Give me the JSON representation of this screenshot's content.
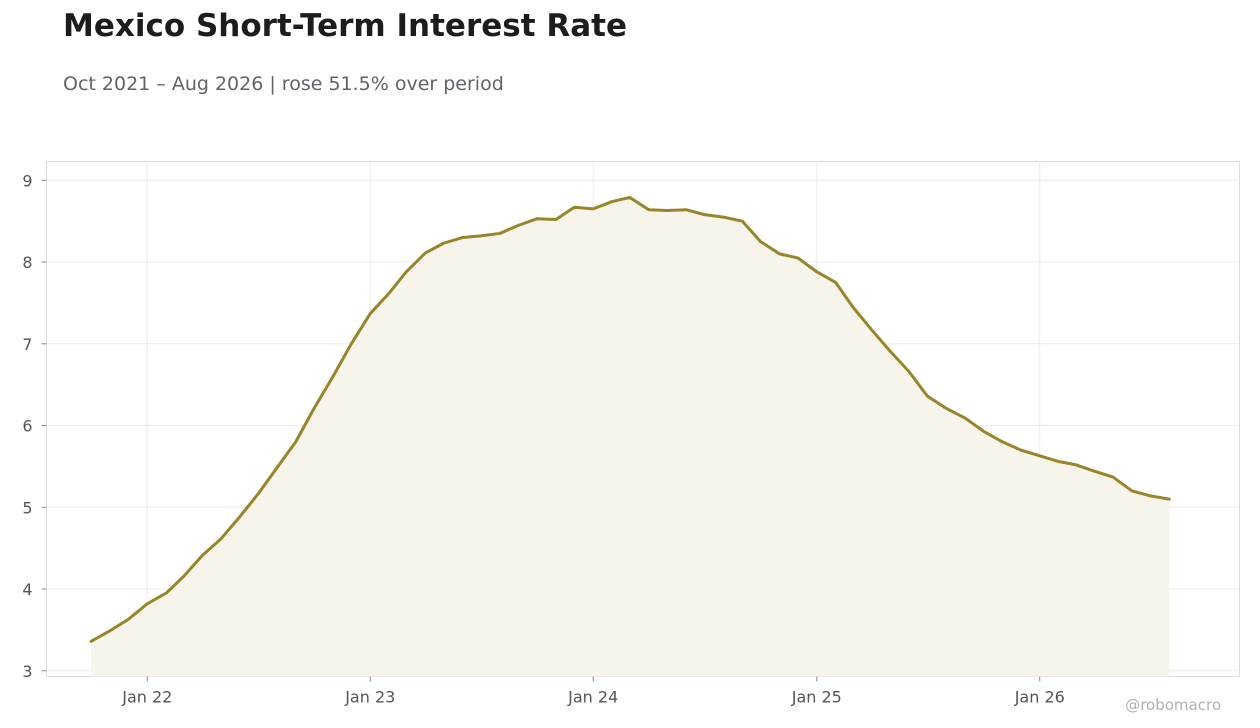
{
  "header": {
    "title": "Mexico Short-Term Interest Rate",
    "subtitle": "Oct 2021 – Aug 2026 | rose 51.5% over period"
  },
  "watermark": "@robomacro",
  "colors": {
    "line": "#9a8429",
    "fill": "#f7f4ec",
    "grid": "#ececec",
    "frame": "#dddddd"
  },
  "chart_data": {
    "type": "area",
    "title": "Mexico Short-Term Interest Rate",
    "xlabel": "",
    "ylabel": "",
    "ylim": [
      2.93,
      9.23
    ],
    "xlim": [
      "2021-07-20",
      "2026-11-24"
    ],
    "grid": true,
    "legend": "none",
    "x_ticks": [
      {
        "date": "2022-01-01",
        "label": "Jan 22"
      },
      {
        "date": "2023-01-01",
        "label": "Jan 23"
      },
      {
        "date": "2024-01-01",
        "label": "Jan 24"
      },
      {
        "date": "2025-01-01",
        "label": "Jan 25"
      },
      {
        "date": "2026-01-01",
        "label": "Jan 26"
      }
    ],
    "y_ticks": [
      3,
      4,
      5,
      6,
      7,
      8,
      9
    ],
    "series": [
      {
        "x": [
          "2021-10-01",
          "2021-11-01",
          "2021-12-01",
          "2022-01-01",
          "2022-02-01",
          "2022-03-01",
          "2022-04-01",
          "2022-05-01",
          "2022-06-01",
          "2022-07-01",
          "2022-08-01",
          "2022-09-01",
          "2022-10-01",
          "2022-11-01",
          "2022-12-01",
          "2023-01-01",
          "2023-02-01",
          "2023-03-01",
          "2023-04-01",
          "2023-05-01",
          "2023-06-01",
          "2023-07-01",
          "2023-08-01",
          "2023-09-01",
          "2023-10-01",
          "2023-11-01",
          "2023-12-01",
          "2024-01-01",
          "2024-02-01",
          "2024-03-01",
          "2024-04-01",
          "2024-05-01",
          "2024-06-01",
          "2024-07-01",
          "2024-08-01",
          "2024-09-01",
          "2024-10-01",
          "2024-11-01",
          "2024-12-01",
          "2025-01-01",
          "2025-02-01",
          "2025-03-01",
          "2025-04-01",
          "2025-05-01",
          "2025-06-01",
          "2025-07-01",
          "2025-08-01",
          "2025-09-01",
          "2025-10-01",
          "2025-11-01",
          "2025-12-01",
          "2026-01-01",
          "2026-02-01",
          "2026-03-01",
          "2026-04-01",
          "2026-05-01",
          "2026-06-01",
          "2026-07-01",
          "2026-08-01"
        ],
        "values": [
          3.36,
          3.49,
          3.63,
          3.82,
          3.95,
          4.15,
          4.41,
          4.61,
          4.88,
          5.16,
          5.48,
          5.8,
          6.21,
          6.6,
          7.0,
          7.37,
          7.62,
          7.88,
          8.11,
          8.23,
          8.3,
          8.32,
          8.35,
          8.45,
          8.53,
          8.52,
          8.67,
          8.65,
          8.74,
          8.79,
          8.64,
          8.63,
          8.64,
          8.58,
          8.55,
          8.5,
          8.25,
          8.1,
          8.05,
          7.88,
          7.75,
          7.45,
          7.17,
          6.91,
          6.66,
          6.36,
          6.21,
          6.09,
          5.93,
          5.8,
          5.7,
          5.63,
          5.56,
          5.52,
          5.44,
          5.37,
          5.2,
          5.14,
          5.1
        ]
      }
    ]
  }
}
